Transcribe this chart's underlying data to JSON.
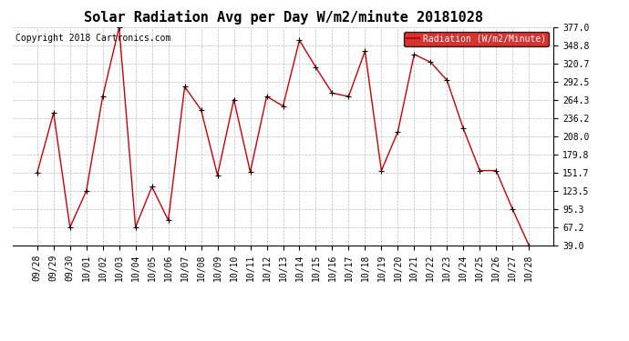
{
  "title": "Solar Radiation Avg per Day W/m2/minute 20181028",
  "copyright_text": "Copyright 2018 Cartronics.com",
  "legend_label": "Radiation (W/m2/Minute)",
  "labels": [
    "09/28",
    "09/29",
    "09/30",
    "10/01",
    "10/02",
    "10/03",
    "10/04",
    "10/05",
    "10/06",
    "10/07",
    "10/08",
    "10/09",
    "10/10",
    "10/11",
    "10/12",
    "10/13",
    "10/14",
    "10/15",
    "10/16",
    "10/17",
    "10/18",
    "10/19",
    "10/20",
    "10/21",
    "10/22",
    "10/23",
    "10/24",
    "10/25",
    "10/26",
    "10/27",
    "10/28"
  ],
  "values": [
    151.7,
    244.5,
    67.2,
    123.5,
    270.0,
    377.0,
    67.5,
    130.0,
    78.0,
    285.0,
    249.0,
    148.0,
    265.0,
    153.0,
    270.0,
    255.0,
    357.0,
    315.0,
    275.0,
    270.0,
    340.0,
    155.0,
    215.0,
    335.0,
    323.0,
    295.0,
    220.0,
    155.0,
    155.0,
    95.3,
    39.0
  ],
  "line_color": "#cc0000",
  "marker_color": "#000000",
  "background_color": "#ffffff",
  "grid_color": "#bbbbbb",
  "ylim": [
    39.0,
    377.0
  ],
  "yticks": [
    39.0,
    67.2,
    95.3,
    123.5,
    151.7,
    179.8,
    208.0,
    236.2,
    264.3,
    292.5,
    320.7,
    348.8,
    377.0
  ],
  "legend_bg": "#cc0000",
  "legend_text_color": "#ffffff",
  "title_fontsize": 11,
  "tick_fontsize": 7,
  "copyright_fontsize": 7,
  "figwidth": 6.9,
  "figheight": 3.75,
  "dpi": 100
}
